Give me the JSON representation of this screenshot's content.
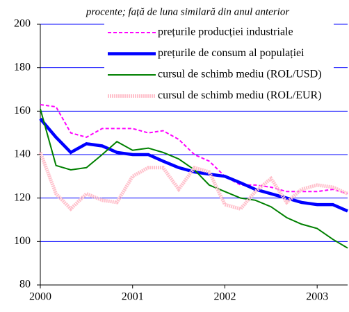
{
  "chart_data": {
    "type": "line",
    "subtitle": "procente; față de luna similară din anul anterior",
    "x": [
      2000,
      2000.17,
      2000.33,
      2000.5,
      2000.67,
      2000.83,
      2001,
      2001.17,
      2001.33,
      2001.5,
      2001.67,
      2001.83,
      2002,
      2002.17,
      2002.33,
      2002.5,
      2002.67,
      2002.83,
      2003,
      2003.17,
      2003.33
    ],
    "series": [
      {
        "name": "prețurile producției industriale",
        "color": "#ff00ff",
        "dash": "dashed",
        "width": 2,
        "values": [
          163,
          162,
          150,
          148,
          152,
          152,
          152,
          150,
          151,
          147,
          140,
          137,
          130,
          126,
          126,
          125,
          123,
          123,
          123,
          124,
          122
        ]
      },
      {
        "name": "prețurile de consum al populației",
        "color": "#0000ff",
        "dash": "solid",
        "width": 4.5,
        "values": [
          156.5,
          148,
          141,
          145,
          144,
          141,
          140,
          140,
          137,
          134,
          132,
          131,
          130,
          127,
          124,
          122,
          120,
          118,
          117,
          117,
          114
        ]
      },
      {
        "name": "cursul de schimb mediu (ROL/USD)",
        "color": "#008000",
        "dash": "solid",
        "width": 2,
        "values": [
          161,
          135,
          133,
          134,
          140,
          146,
          142,
          143,
          141,
          138,
          133,
          126,
          123,
          120,
          119,
          116,
          111,
          108,
          106,
          101,
          97
        ]
      },
      {
        "name": "cursul de schimb mediu (ROL/EUR)",
        "color": "#ffc0cb",
        "dash": "dotted",
        "width": 5,
        "values": [
          141,
          122,
          115,
          122,
          119,
          118,
          130,
          134,
          134,
          124,
          134,
          132,
          117,
          115,
          123,
          129,
          118,
          124,
          126,
          125,
          122
        ]
      }
    ],
    "xlim": [
      2000,
      2003.33
    ],
    "xticks": [
      2000,
      2001,
      2002,
      2003
    ],
    "ylim": [
      80,
      200
    ],
    "yticks": [
      80,
      100,
      120,
      140,
      160,
      180,
      200
    ],
    "grid": true,
    "grid_color": "#0000ff",
    "legend": "top"
  }
}
